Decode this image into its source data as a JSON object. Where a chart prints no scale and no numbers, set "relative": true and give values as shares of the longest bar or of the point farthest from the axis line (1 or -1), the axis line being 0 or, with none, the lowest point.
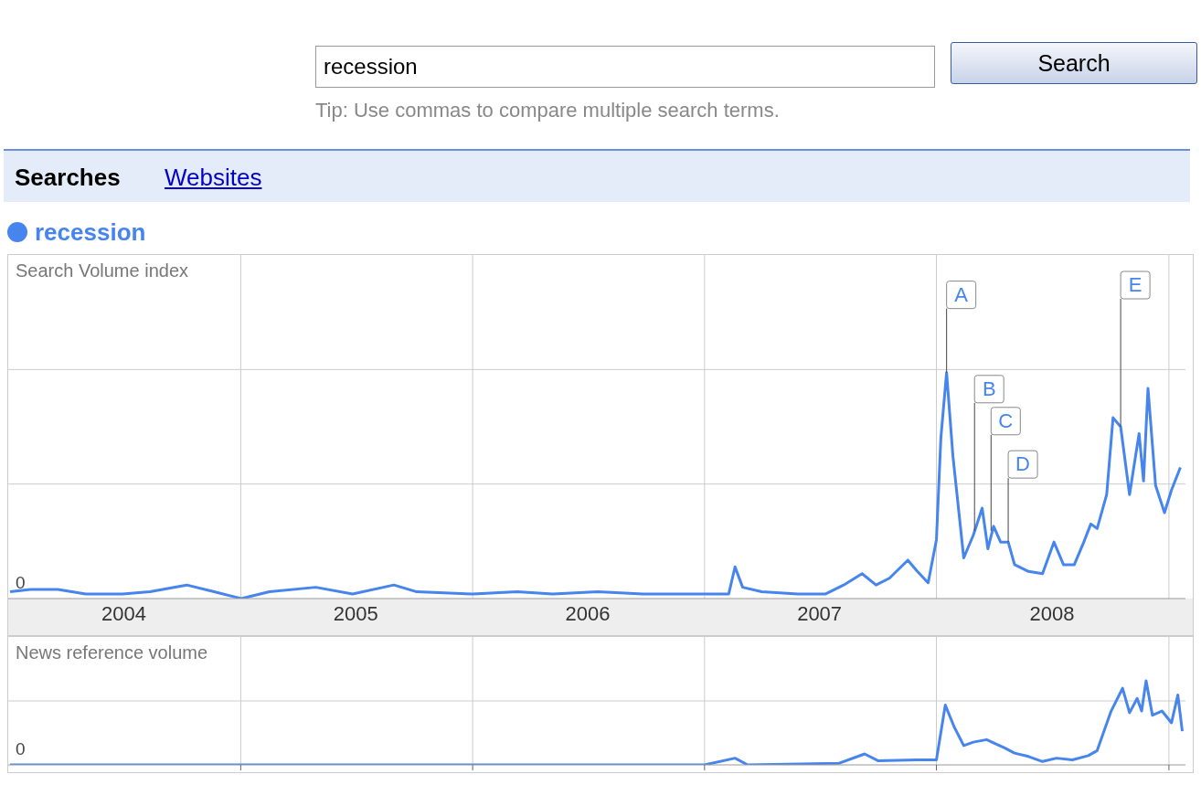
{
  "chart_data": [
    {
      "type": "line",
      "ylabel": "Search Volume index",
      "relative": true,
      "grid": true,
      "legend": "top left",
      "marker": "none",
      "line_style": "solid",
      "annotations": [
        "recession",
        "Search",
        "Tip: Use commas to compare multiple search terms.",
        "Searches",
        "Websites",
        "0",
        {
          "text": "A",
          "x": "2008-01-17",
          "y": 1
        },
        {
          "text": "B",
          "x": "2008-03-01",
          "y": 0.3
        },
        {
          "text": "C",
          "x": "2008-03-27",
          "y": 0.3
        },
        {
          "text": "D",
          "x": "2008-04-23",
          "y": 0.25
        },
        {
          "text": "E",
          "x": "2008-10-17",
          "y": 0.76
        }
      ],
      "xlim": [
        "2004-01-01",
        "2009-01-27"
      ],
      "xticks": [
        {
          "value": "2004-07-01",
          "label": "2004"
        },
        {
          "value": "2005-01-01",
          "label": null
        },
        {
          "value": "2005-07-01",
          "label": "2005"
        },
        {
          "value": "2006-01-01",
          "label": null
        },
        {
          "value": "2006-07-01",
          "label": "2006"
        },
        {
          "value": "2007-01-01",
          "label": null
        },
        {
          "value": "2007-07-01",
          "label": "2007"
        },
        {
          "value": "2008-01-01",
          "label": null
        },
        {
          "value": "2008-07-01",
          "label": "2008"
        },
        {
          "value": "2009-01-01",
          "label": null
        }
      ],
      "x": [
        "2004-01-04",
        "2004-02-05",
        "2004-03-19",
        "2004-05-02",
        "2004-05-31",
        "2004-06-29",
        "2004-08-11",
        "2004-10-08",
        "2004-11-20",
        "2005-01-02",
        "2005-02-15",
        "2005-04-29",
        "2005-06-26",
        "2005-08-30",
        "2005-10-05",
        "2006-01-01",
        "2006-03-12",
        "2006-05-07",
        "2006-07-17",
        "2006-09-26",
        "2006-12-20",
        "2007-02-08",
        "2007-02-18",
        "2007-03-02",
        "2007-04-01",
        "2007-05-28",
        "2007-07-10",
        "2007-08-08",
        "2007-09-06",
        "2007-09-28",
        "2007-10-19",
        "2007-11-17",
        "2007-12-02",
        "2007-12-19",
        "2008-01-01",
        "2008-01-08",
        "2008-01-17",
        "2008-01-27",
        "2008-02-13",
        "2008-02-28",
        "2008-03-13",
        "2008-03-22",
        "2008-03-31",
        "2008-04-11",
        "2008-04-23",
        "2008-05-03",
        "2008-05-25",
        "2008-06-16",
        "2008-07-04",
        "2008-07-19",
        "2008-08-05",
        "2008-08-20",
        "2008-08-31",
        "2008-09-10",
        "2008-09-25",
        "2008-10-05",
        "2008-10-17",
        "2008-10-31",
        "2008-11-15",
        "2008-11-22",
        "2008-11-29",
        "2008-12-11",
        "2008-12-25",
        "2009-01-05",
        "2009-01-19"
      ],
      "series": [
        {
          "name": "recession",
          "color": "#4684ee",
          "values": [
            0.03,
            0.04,
            0.04,
            0.02,
            0.02,
            0.02,
            0.03,
            0.06,
            0.03,
            0,
            0.03,
            0.05,
            0.02,
            0.06,
            0.03,
            0.02,
            0.03,
            0.02,
            0.03,
            0.02,
            0.02,
            0.02,
            0.14,
            0.05,
            0.03,
            0.02,
            0.02,
            0.06,
            0.11,
            0.06,
            0.09,
            0.17,
            0.12,
            0.07,
            0.26,
            0.71,
            1,
            0.63,
            0.18,
            0.28,
            0.4,
            0.22,
            0.32,
            0.25,
            0.25,
            0.15,
            0.12,
            0.11,
            0.25,
            0.15,
            0.15,
            0.25,
            0.33,
            0.31,
            0.46,
            0.8,
            0.76,
            0.46,
            0.73,
            0.52,
            0.93,
            0.5,
            0.38,
            0.48,
            0.58
          ]
        }
      ]
    },
    {
      "type": "line",
      "ylabel": "News reference volume",
      "relative": true,
      "grid": true,
      "tick_labels": false,
      "line_style": "solid",
      "annotations": [
        "0"
      ],
      "xlim": [
        "2004-01-01",
        "2009-01-27"
      ],
      "xticks": [
        {
          "value": "2005-01-01",
          "label": null
        },
        {
          "value": "2006-01-01",
          "label": null
        },
        {
          "value": "2007-01-01",
          "label": null
        },
        {
          "value": "2008-01-01",
          "label": null
        },
        {
          "value": "2009-01-01",
          "label": null
        }
      ],
      "x": [
        "2004-01-04",
        "2005-06-01",
        "2006-06-01",
        "2007-01-01",
        "2007-02-18",
        "2007-03-10",
        "2007-08-01",
        "2007-09-10",
        "2007-10-01",
        "2007-12-01",
        "2008-01-01",
        "2008-01-15",
        "2008-01-29",
        "2008-02-13",
        "2008-02-28",
        "2008-03-20",
        "2008-04-03",
        "2008-04-18",
        "2008-05-03",
        "2008-05-25",
        "2008-06-16",
        "2008-07-08",
        "2008-08-02",
        "2008-08-27",
        "2008-09-10",
        "2008-10-02",
        "2008-10-20",
        "2008-10-31",
        "2008-11-12",
        "2008-11-19",
        "2008-11-26",
        "2008-12-06",
        "2008-12-21",
        "2009-01-05",
        "2009-01-15",
        "2009-01-22"
      ],
      "series": [
        {
          "color": "#4684ee",
          "values": [
            0,
            0,
            0,
            0,
            0.08,
            0,
            0.02,
            0.13,
            0.05,
            0.06,
            0.06,
            0.71,
            0.45,
            0.23,
            0.27,
            0.3,
            0.25,
            0.2,
            0.14,
            0.1,
            0.04,
            0.08,
            0.06,
            0.11,
            0.17,
            0.64,
            0.91,
            0.62,
            0.79,
            0.64,
            1,
            0.59,
            0.64,
            0.5,
            0.83,
            0.4
          ]
        }
      ]
    }
  ]
}
